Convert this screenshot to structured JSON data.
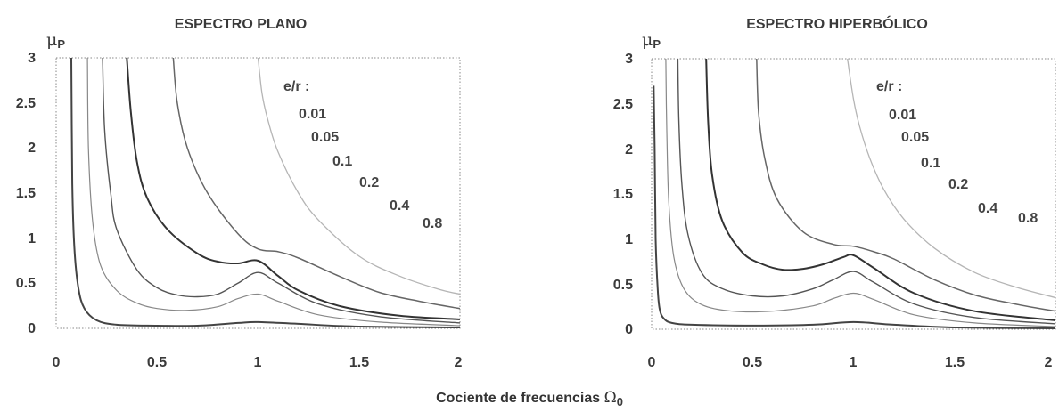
{
  "xlabel_text": "Cociente de frecuencias ",
  "xlabel_symbol": "Ω",
  "xlabel_sub": "0",
  "chart_data": [
    {
      "type": "line",
      "title": "ESPECTRO PLANO",
      "ylabel_symbol": "μ",
      "ylabel_sub": "P",
      "xlim": [
        0,
        2
      ],
      "ylim": [
        0,
        3
      ],
      "xticks": [
        "0",
        "0.5",
        "1",
        "1.5",
        "2"
      ],
      "yticks": [
        "0",
        "0.5",
        "1",
        "1.5",
        "2",
        "2.5",
        "3"
      ],
      "annotation_header": "e/r :",
      "annotations": [
        "0.01",
        "0.05",
        "0.1",
        "0.2",
        "0.4",
        "0.8"
      ],
      "series": [
        {
          "name": "0.01",
          "color": "#444444",
          "width": 2.0,
          "x": [
            0.075,
            0.08,
            0.09,
            0.11,
            0.14,
            0.2,
            0.3,
            0.5,
            0.7,
            0.9,
            1.0,
            1.2,
            1.5,
            2.0
          ],
          "y": [
            3.0,
            1.6,
            0.9,
            0.45,
            0.22,
            0.09,
            0.04,
            0.03,
            0.03,
            0.06,
            0.07,
            0.05,
            0.02,
            0.01
          ]
        },
        {
          "name": "0.05",
          "color": "#888888",
          "width": 1.2,
          "x": [
            0.155,
            0.16,
            0.18,
            0.22,
            0.3,
            0.4,
            0.5,
            0.65,
            0.8,
            0.9,
            1.0,
            1.1,
            1.3,
            1.6,
            2.0
          ],
          "y": [
            3.0,
            2.0,
            1.2,
            0.7,
            0.42,
            0.28,
            0.22,
            0.2,
            0.24,
            0.33,
            0.38,
            0.3,
            0.15,
            0.07,
            0.03
          ]
        },
        {
          "name": "0.1",
          "color": "#555555",
          "width": 1.4,
          "x": [
            0.23,
            0.24,
            0.27,
            0.3,
            0.4,
            0.5,
            0.6,
            0.7,
            0.8,
            0.9,
            1.0,
            1.1,
            1.3,
            1.6,
            2.0
          ],
          "y": [
            3.0,
            2.2,
            1.5,
            1.1,
            0.65,
            0.45,
            0.37,
            0.35,
            0.38,
            0.5,
            0.62,
            0.5,
            0.27,
            0.13,
            0.06
          ]
        },
        {
          "name": "0.2",
          "color": "#333333",
          "width": 2.0,
          "x": [
            0.35,
            0.37,
            0.4,
            0.45,
            0.55,
            0.7,
            0.8,
            0.9,
            1.0,
            1.1,
            1.2,
            1.4,
            1.7,
            2.0
          ],
          "y": [
            3.0,
            2.4,
            1.85,
            1.45,
            1.1,
            0.83,
            0.74,
            0.72,
            0.75,
            0.58,
            0.42,
            0.25,
            0.14,
            0.1
          ]
        },
        {
          "name": "0.4",
          "color": "#666666",
          "width": 1.5,
          "x": [
            0.58,
            0.6,
            0.65,
            0.75,
            0.9,
            1.0,
            1.1,
            1.2,
            1.4,
            1.6,
            1.8,
            2.0
          ],
          "y": [
            3.0,
            2.5,
            2.0,
            1.5,
            1.05,
            0.88,
            0.85,
            0.78,
            0.58,
            0.4,
            0.3,
            0.22
          ]
        },
        {
          "name": "0.8",
          "color": "#b5b5b5",
          "width": 1.3,
          "x": [
            1.0,
            1.02,
            1.05,
            1.1,
            1.2,
            1.3,
            1.5,
            1.7,
            1.9,
            2.0
          ],
          "y": [
            3.0,
            2.6,
            2.3,
            1.95,
            1.5,
            1.2,
            0.8,
            0.58,
            0.43,
            0.38
          ]
        }
      ]
    },
    {
      "type": "line",
      "title": "ESPECTRO HIPERBÓLICO",
      "ylabel_symbol": "μ",
      "ylabel_sub": "P",
      "xlim": [
        0,
        2
      ],
      "ylim": [
        0,
        3
      ],
      "xticks": [
        "0",
        "0.5",
        "1",
        "1.5",
        "2"
      ],
      "yticks": [
        "0",
        "0.5",
        "1",
        "1.5",
        "2",
        "2.5",
        "3"
      ],
      "annotation_header": "e/r :",
      "annotations": [
        "0.01",
        "0.05",
        "0.1",
        "0.2",
        "0.4",
        "0.8"
      ],
      "series": [
        {
          "name": "0.01",
          "color": "#444444",
          "width": 2.0,
          "x": [
            0.01,
            0.015,
            0.02,
            0.03,
            0.04,
            0.06,
            0.1,
            0.2,
            0.5,
            0.8,
            1.0,
            1.2,
            1.5,
            2.0
          ],
          "y": [
            2.7,
            2.0,
            1.0,
            0.45,
            0.22,
            0.12,
            0.07,
            0.05,
            0.04,
            0.05,
            0.08,
            0.05,
            0.02,
            0.01
          ]
        },
        {
          "name": "0.05",
          "color": "#888888",
          "width": 1.2,
          "x": [
            0.07,
            0.075,
            0.085,
            0.11,
            0.16,
            0.25,
            0.4,
            0.6,
            0.8,
            0.9,
            1.0,
            1.1,
            1.3,
            1.6,
            2.0
          ],
          "y": [
            3.0,
            2.2,
            1.4,
            0.8,
            0.45,
            0.27,
            0.2,
            0.2,
            0.26,
            0.34,
            0.4,
            0.33,
            0.16,
            0.07,
            0.03
          ]
        },
        {
          "name": "0.1",
          "color": "#555555",
          "width": 1.4,
          "x": [
            0.13,
            0.135,
            0.15,
            0.18,
            0.25,
            0.35,
            0.5,
            0.65,
            0.8,
            0.9,
            1.0,
            1.1,
            1.3,
            1.6,
            2.0
          ],
          "y": [
            3.0,
            2.3,
            1.6,
            1.05,
            0.62,
            0.45,
            0.37,
            0.37,
            0.45,
            0.55,
            0.64,
            0.52,
            0.28,
            0.13,
            0.06
          ]
        },
        {
          "name": "0.2",
          "color": "#333333",
          "width": 2.0,
          "x": [
            0.27,
            0.28,
            0.3,
            0.35,
            0.45,
            0.55,
            0.65,
            0.75,
            0.85,
            0.95,
            1.0,
            1.1,
            1.3,
            1.6,
            2.0
          ],
          "y": [
            3.0,
            2.3,
            1.7,
            1.2,
            0.85,
            0.72,
            0.66,
            0.67,
            0.72,
            0.8,
            0.82,
            0.68,
            0.4,
            0.2,
            0.1
          ]
        },
        {
          "name": "0.4",
          "color": "#666666",
          "width": 1.5,
          "x": [
            0.52,
            0.53,
            0.56,
            0.62,
            0.75,
            0.9,
            1.0,
            1.1,
            1.2,
            1.4,
            1.6,
            1.8,
            2.0
          ],
          "y": [
            3.0,
            2.4,
            1.9,
            1.45,
            1.08,
            0.94,
            0.92,
            0.86,
            0.78,
            0.55,
            0.38,
            0.28,
            0.2
          ]
        },
        {
          "name": "0.8",
          "color": "#b5b5b5",
          "width": 1.3,
          "x": [
            0.97,
            1.0,
            1.03,
            1.08,
            1.15,
            1.25,
            1.4,
            1.6,
            1.8,
            2.0
          ],
          "y": [
            3.0,
            2.55,
            2.25,
            1.9,
            1.55,
            1.22,
            0.9,
            0.63,
            0.47,
            0.35
          ]
        }
      ]
    }
  ]
}
